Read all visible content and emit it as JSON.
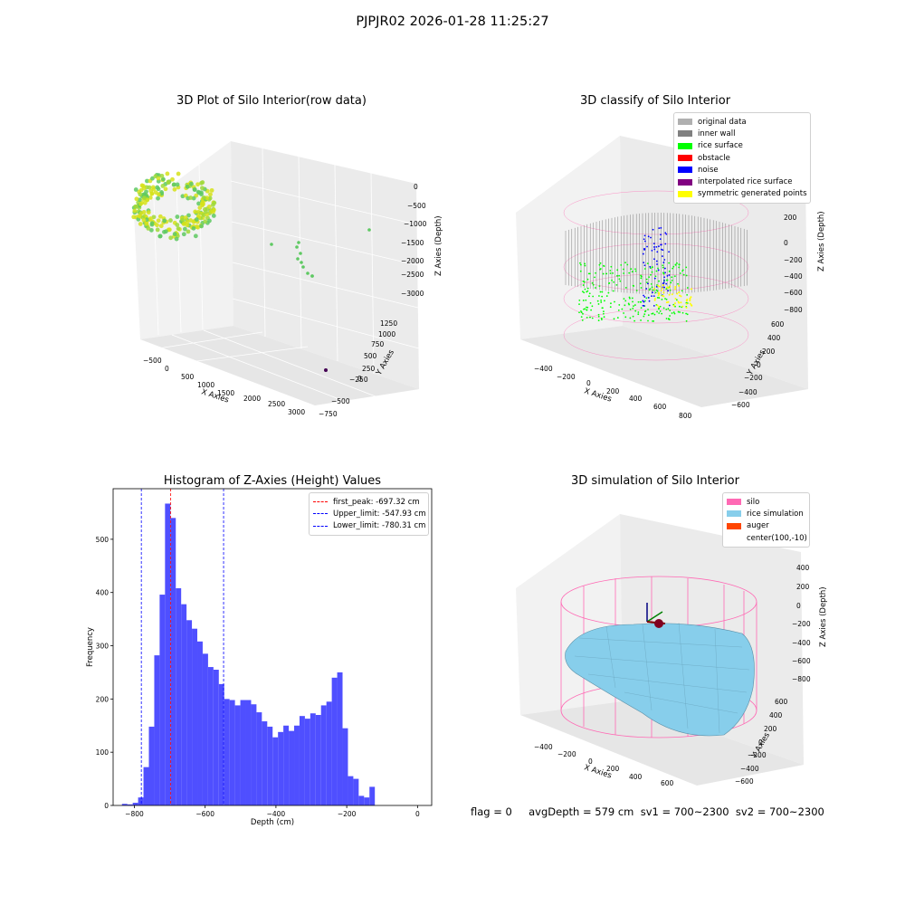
{
  "suptitle": "PJPJR02 2026-01-28 11:25:27",
  "footer": "flag = 0     avgDepth = 579 cm  sv1 = 700~2300  sv2 = 700~2300",
  "colors": {
    "histogram_bar": "#4f4fff",
    "silo": "#ff69b4",
    "rice_simulation": "#87ceeb",
    "auger": "#ff4500",
    "original": "#b0b0b0",
    "inner_wall": "#808080",
    "rice_surface": "#00ff00",
    "obstacle": "#ff0000",
    "noise": "#0000ff",
    "interpolated": "#800080",
    "symmetric": "#ffff00"
  },
  "chart_data": [
    {
      "type": "scatter",
      "projection": "3d",
      "title": "3D Plot of Silo Interior(row data)",
      "xlabel": "X Axies",
      "ylabel": "Y Axies",
      "zlabel": "Z Axies (Depth)",
      "x_ticks": [
        "−500",
        "0",
        "500",
        "1000",
        "1500",
        "2000",
        "2500",
        "3000"
      ],
      "y_ticks": [
        "−750",
        "−500",
        "−250",
        "0",
        "250",
        "500",
        "750",
        "1000",
        "1250"
      ],
      "z_ticks": [
        "0",
        "−500",
        "−1000",
        "−1500",
        "−2000",
        "−2500",
        "−3000"
      ],
      "colormap": "viridis"
    },
    {
      "type": "scatter",
      "projection": "3d",
      "title": "3D classify of Silo Interior",
      "xlabel": "X Axies",
      "ylabel": "Y Axies",
      "zlabel": "Z Axies (Depth)",
      "x_ticks": [
        "−400",
        "−200",
        "0",
        "200",
        "400",
        "600",
        "800"
      ],
      "y_ticks": [
        "−600",
        "−400",
        "−200",
        "0",
        "200",
        "400",
        "600"
      ],
      "z_ticks": [
        "200",
        "0",
        "−200",
        "−400",
        "−600",
        "−800"
      ],
      "legend_position": "top-right",
      "legend": [
        {
          "label": "original data",
          "color": "#b0b0b0"
        },
        {
          "label": "inner wall",
          "color": "#808080"
        },
        {
          "label": "rice surface",
          "color": "#00ff00"
        },
        {
          "label": "obstacle",
          "color": "#ff0000"
        },
        {
          "label": "noise",
          "color": "#0000ff"
        },
        {
          "label": "interpolated rice surface",
          "color": "#800080"
        },
        {
          "label": "symmetric generated points",
          "color": "#ffff00"
        }
      ]
    },
    {
      "type": "bar",
      "title": "Histogram of Z-Axies (Height) Values",
      "xlabel": "Depth (cm)",
      "ylabel": "Frequency",
      "xlim": [
        -860,
        40
      ],
      "ylim": [
        0,
        595
      ],
      "x_ticks": [
        -800,
        -600,
        -400,
        -200,
        0
      ],
      "x_tick_labels": [
        "−800",
        "−600",
        "−400",
        "−200",
        "0"
      ],
      "y_ticks": [
        0,
        100,
        200,
        300,
        400,
        500
      ],
      "y_tick_labels": [
        "0",
        "100",
        "200",
        "300",
        "400",
        "500"
      ],
      "bin_edges_start": -835,
      "bin_width": 15.2,
      "values": [
        3,
        2,
        5,
        15,
        72,
        148,
        282,
        396,
        567,
        540,
        408,
        378,
        348,
        332,
        308,
        285,
        260,
        255,
        228,
        200,
        198,
        188,
        198,
        198,
        190,
        175,
        158,
        148,
        128,
        138,
        150,
        140,
        150,
        168,
        163,
        173,
        170,
        188,
        195,
        240,
        250,
        145,
        55,
        50,
        18,
        15,
        35
      ],
      "vlines": [
        {
          "label": "first_peak: -697.32 cm",
          "value": -697.32,
          "color": "#ff0000"
        },
        {
          "label": "Upper_limit: -547.93 cm",
          "value": -547.93,
          "color": "#0000ff"
        },
        {
          "label": "Lower_limit: -780.31 cm",
          "value": -780.31,
          "color": "#0000ff"
        }
      ],
      "legend_position": "top-right"
    },
    {
      "type": "surface",
      "projection": "3d",
      "title": "3D simulation of Silo Interior",
      "xlabel": "X Axies",
      "ylabel": "Y Axies",
      "zlabel": "Z Axies (Depth)",
      "x_ticks": [
        "−400",
        "−200",
        "0",
        "200",
        "400",
        "600"
      ],
      "y_ticks": [
        "−600",
        "−400",
        "−200",
        "0",
        "200",
        "400",
        "600"
      ],
      "z_ticks": [
        "400",
        "200",
        "0",
        "−200",
        "−400",
        "−600",
        "−800"
      ],
      "legend_position": "top-right",
      "legend": [
        {
          "label": "silo",
          "color": "#ff69b4"
        },
        {
          "label": "rice simulation",
          "color": "#87ceeb"
        },
        {
          "label": "auger",
          "color": "#ff4500"
        },
        {
          "label": "center(100,-10)",
          "color": ""
        }
      ]
    }
  ]
}
